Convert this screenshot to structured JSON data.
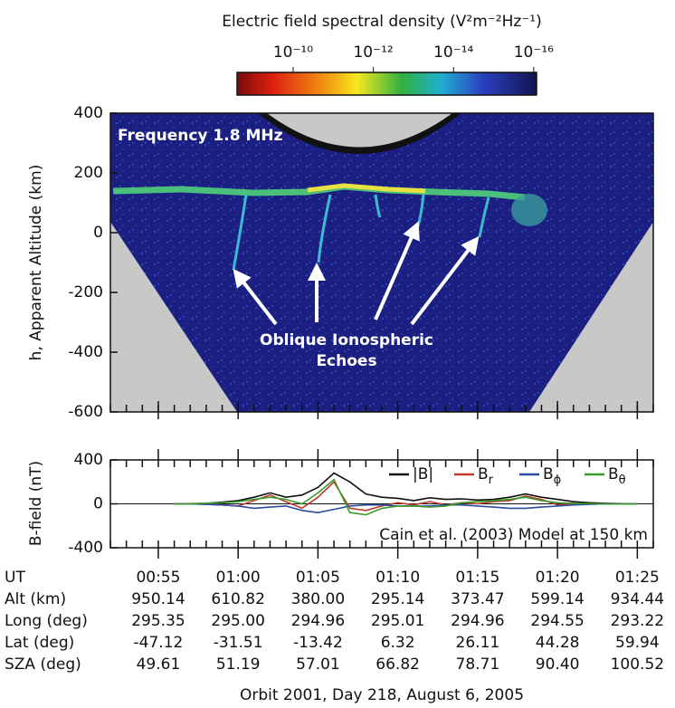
{
  "chart_data": [
    {
      "type": "image",
      "colorbar_title": "Electric field spectral density (V²m⁻²Hz⁻¹)",
      "clim": [
        2.5e-09,
        8.5e-17
      ],
      "log": true,
      "cticks": [
        {
          "value": 1e-10,
          "label": "10⁻¹⁰"
        },
        {
          "value": 1e-12,
          "label": "10⁻¹²"
        },
        {
          "value": 1e-14,
          "label": "10⁻¹⁴"
        },
        {
          "value": 1e-16,
          "label": "10⁻¹⁶"
        }
      ],
      "ylabel": "h, Apparent Altitude (km)",
      "ylim": [
        -600,
        400
      ],
      "yticks": [
        400,
        200,
        0,
        -200,
        -400,
        -600
      ],
      "annotations": [
        "Frequency 1.8 MHz",
        "Oblique Ionospheric",
        "Echoes"
      ]
    },
    {
      "type": "line",
      "ylabel": "B-field (nT)",
      "ylim": [
        -400,
        400
      ],
      "yticks": [
        400,
        0,
        -400
      ],
      "xlim": [
        52,
        86
      ],
      "xticks": [
        {
          "value": 55,
          "label": "00:55"
        },
        {
          "value": 60,
          "label": "01:00"
        },
        {
          "value": 65,
          "label": "01:05"
        },
        {
          "value": 70,
          "label": "01:10"
        },
        {
          "value": 75,
          "label": "01:15"
        },
        {
          "value": 80,
          "label": "01:20"
        },
        {
          "value": 85,
          "label": "01:25"
        }
      ],
      "x": [
        56,
        57,
        58,
        59,
        60,
        61,
        62,
        63,
        64,
        65,
        66,
        67,
        68,
        69,
        70,
        71,
        72,
        73,
        74,
        75,
        76,
        77,
        78,
        79,
        80,
        81,
        82,
        83,
        84,
        85
      ],
      "series": [
        {
          "name": "|B|",
          "color": "#111111",
          "values": [
            0,
            2,
            5,
            15,
            30,
            60,
            100,
            60,
            80,
            150,
            280,
            200,
            90,
            60,
            50,
            30,
            55,
            40,
            45,
            35,
            40,
            60,
            90,
            60,
            40,
            20,
            10,
            5,
            2,
            0
          ]
        },
        {
          "name": "Br",
          "color": "#c0392b",
          "values": [
            0,
            0,
            -5,
            -10,
            -20,
            30,
            80,
            20,
            -40,
            60,
            200,
            -40,
            -60,
            -20,
            10,
            -10,
            20,
            -10,
            10,
            0,
            20,
            30,
            70,
            40,
            -10,
            -5,
            0,
            0,
            0,
            0
          ]
        },
        {
          "name": "Bϕ",
          "color": "#2a4da0",
          "values": [
            0,
            0,
            -5,
            -10,
            -20,
            -40,
            -30,
            -20,
            -60,
            -80,
            -50,
            -20,
            -10,
            -10,
            -20,
            -20,
            -20,
            -10,
            -10,
            -20,
            -30,
            -40,
            -40,
            -30,
            -20,
            -10,
            -5,
            0,
            0,
            0
          ]
        },
        {
          "name": "Bθ",
          "color": "#3a9a2a",
          "values": [
            0,
            0,
            5,
            10,
            20,
            40,
            60,
            40,
            0,
            100,
            220,
            -80,
            -100,
            -40,
            -20,
            -20,
            -30,
            -20,
            10,
            20,
            30,
            40,
            60,
            30,
            10,
            5,
            0,
            0,
            0,
            0
          ]
        }
      ],
      "annotation": "Cain et al. (2003) Model at 150 km",
      "row_header": "UT",
      "ephemeris": [
        {
          "label": "Alt (km)",
          "values": [
            "950.14",
            "610.82",
            "380.00",
            "295.14",
            "373.47",
            "599.14",
            "934.44"
          ]
        },
        {
          "label": "Long (deg)",
          "values": [
            "295.35",
            "295.00",
            "294.96",
            "295.01",
            "294.96",
            "294.55",
            "293.22"
          ]
        },
        {
          "label": "Lat (deg)",
          "values": [
            "-47.12",
            "-31.51",
            "-13.42",
            "6.32",
            "26.11",
            "44.28",
            "59.94"
          ]
        },
        {
          "label": "SZA (deg)",
          "values": [
            "49.61",
            "51.19",
            "57.01",
            "66.82",
            "78.71",
            "90.40",
            "100.52"
          ]
        }
      ],
      "xlabel": "Orbit 2001, Day 218, August 6, 2005"
    }
  ]
}
